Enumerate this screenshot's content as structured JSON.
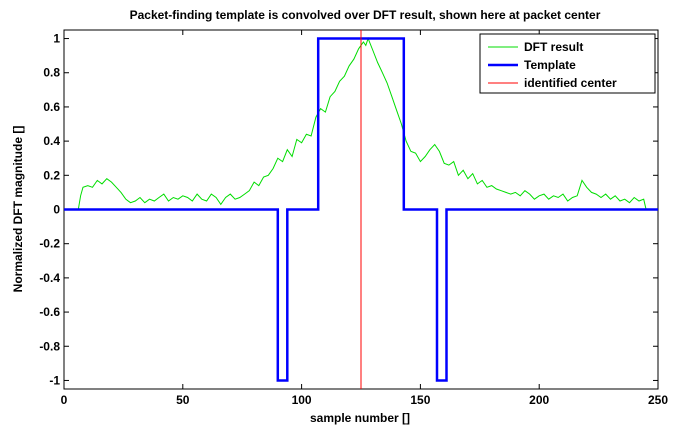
{
  "chart_data": {
    "type": "line",
    "title": "Packet-finding template is convolved over DFT result, shown here at packet center",
    "xlabel": "sample number []",
    "ylabel": "Normalized DFT magnitude []",
    "xlim": [
      0,
      250
    ],
    "ylim": [
      -1.05,
      1.05
    ],
    "xticks": [
      0,
      50,
      100,
      150,
      200,
      250
    ],
    "yticks": [
      1,
      0.8,
      0.6,
      0.4,
      0.2,
      0,
      -0.2,
      -0.4,
      -0.6,
      -0.8,
      -1
    ],
    "grid": false,
    "legend_position": "top-right",
    "series": [
      {
        "name": "DFT result",
        "color": "#00dd00",
        "x": [
          6,
          7,
          8,
          10,
          12,
          14,
          16,
          18,
          20,
          22,
          24,
          26,
          28,
          30,
          32,
          34,
          36,
          38,
          40,
          42,
          44,
          46,
          48,
          50,
          52,
          54,
          56,
          58,
          60,
          62,
          64,
          66,
          68,
          70,
          72,
          74,
          76,
          78,
          80,
          82,
          84,
          86,
          88,
          90,
          92,
          94,
          96,
          98,
          100,
          102,
          104,
          106,
          108,
          110,
          112,
          114,
          116,
          118,
          120,
          122,
          124,
          126,
          127,
          128,
          130,
          132,
          134,
          136,
          138,
          140,
          142,
          144,
          146,
          148,
          150,
          152,
          154,
          156,
          158,
          160,
          162,
          164,
          166,
          168,
          170,
          172,
          174,
          176,
          178,
          180,
          182,
          184,
          186,
          188,
          190,
          192,
          194,
          196,
          198,
          200,
          202,
          204,
          206,
          208,
          210,
          212,
          214,
          216,
          218,
          220,
          222,
          224,
          226,
          228,
          230,
          232,
          234,
          236,
          238,
          240,
          242,
          244,
          245
        ],
        "y": [
          0,
          0.08,
          0.13,
          0.14,
          0.13,
          0.17,
          0.15,
          0.18,
          0.16,
          0.13,
          0.1,
          0.06,
          0.04,
          0.05,
          0.07,
          0.04,
          0.06,
          0.05,
          0.07,
          0.09,
          0.05,
          0.07,
          0.06,
          0.08,
          0.07,
          0.05,
          0.09,
          0.06,
          0.05,
          0.09,
          0.07,
          0.03,
          0.07,
          0.09,
          0.06,
          0.07,
          0.09,
          0.11,
          0.16,
          0.14,
          0.19,
          0.2,
          0.24,
          0.3,
          0.28,
          0.35,
          0.31,
          0.41,
          0.39,
          0.44,
          0.43,
          0.54,
          0.59,
          0.57,
          0.66,
          0.69,
          0.75,
          0.78,
          0.84,
          0.88,
          0.94,
          0.98,
          0.96,
          1.0,
          0.93,
          0.86,
          0.8,
          0.74,
          0.66,
          0.58,
          0.5,
          0.4,
          0.34,
          0.33,
          0.28,
          0.31,
          0.35,
          0.38,
          0.34,
          0.27,
          0.26,
          0.28,
          0.2,
          0.23,
          0.18,
          0.21,
          0.15,
          0.17,
          0.13,
          0.14,
          0.12,
          0.11,
          0.1,
          0.09,
          0.1,
          0.08,
          0.11,
          0.09,
          0.06,
          0.08,
          0.09,
          0.06,
          0.08,
          0.07,
          0.09,
          0.05,
          0.07,
          0.08,
          0.17,
          0.13,
          0.1,
          0.09,
          0.07,
          0.09,
          0.06,
          0.08,
          0.05,
          0.06,
          0.04,
          0.07,
          0.05,
          0.06,
          0.0
        ]
      },
      {
        "name": "Template",
        "color": "#0000ff",
        "x": [
          0,
          90,
          90,
          94,
          94,
          107,
          107,
          143,
          143,
          157,
          157,
          161,
          161,
          250
        ],
        "y": [
          0,
          0,
          -1,
          -1,
          0,
          0,
          1,
          1,
          0,
          0,
          -1,
          -1,
          0,
          0
        ]
      },
      {
        "name": "identified center",
        "color": "#ff0000",
        "x": [
          125,
          125
        ],
        "y": [
          -1.05,
          1.05
        ]
      }
    ]
  }
}
